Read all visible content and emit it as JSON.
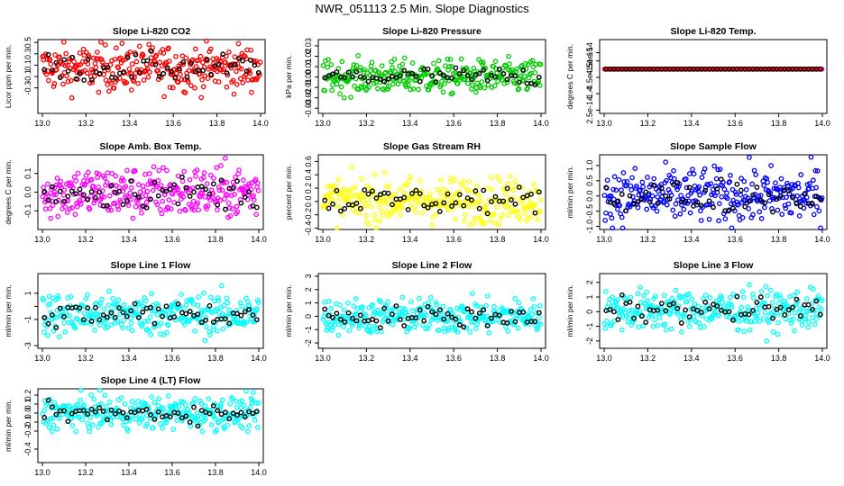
{
  "title": "NWR_051113  2.5 Min. Slope Diagnostics",
  "x_axis": {
    "ticks": [
      "13.0",
      "13.2",
      "13.4",
      "13.6",
      "13.8",
      "14.0"
    ],
    "range": [
      13.0,
      14.0
    ]
  },
  "overlay_color": "#000000",
  "chart_data": [
    {
      "type": "scatter",
      "title": "Slope Li-820 CO2",
      "ylabel": "Licor ppm per min.",
      "color": "#ff0000",
      "yticks": [
        {
          "v": 0.5,
          "t": "0.5"
        },
        {
          "v": 0.3,
          "t": "0.3"
        },
        {
          "v": 0.1,
          "t": "0.1"
        },
        {
          "v": -0.1,
          "t": "-0.1"
        },
        {
          "v": -0.3,
          "t": "-0.3"
        }
      ],
      "ylim": [
        -0.75,
        0.55
      ],
      "center": 0.05,
      "spread": 0.2
    },
    {
      "type": "scatter",
      "title": "Slope Li-820 Pressure",
      "ylabel": "kPa per min.",
      "color": "#00cc00",
      "yticks": [
        {
          "v": 0.03,
          "t": "0.03"
        },
        {
          "v": 0.02,
          "t": "0.02"
        },
        {
          "v": 0.01,
          "t": "0.01"
        },
        {
          "v": 0.0,
          "t": "0.00"
        },
        {
          "v": -0.01,
          "t": "-0.01"
        },
        {
          "v": -0.02,
          "t": "-0.02"
        },
        {
          "v": -0.03,
          "t": "-0.03"
        }
      ],
      "ylim": [
        -0.035,
        0.036
      ],
      "center": 0.0,
      "spread": 0.008
    },
    {
      "type": "scatter",
      "title": "Slope Li-820 Temp.",
      "ylabel": "degrees C per min.",
      "color": "#ff00ff",
      "edge": "#ff0000",
      "yticks": [
        {
          "v": 1.0,
          "t": "1e-14"
        },
        {
          "v": 0.5,
          "t": "4.5e-15"
        },
        {
          "v": -0.5,
          "t": "-4.5e-15"
        },
        {
          "v": -1.5,
          "t": "-1.4"
        },
        {
          "v": -2.5,
          "t": "2.5e-14"
        }
      ],
      "ylim": [
        -2.7,
        1.8
      ],
      "center": 0.0,
      "spread": 0.0
    },
    {
      "type": "scatter",
      "title": "Slope Amb. Box Temp.",
      "ylabel": "degrees C per min.",
      "color": "#ff00ff",
      "yticks": [
        {
          "v": 0.1,
          "t": "0.1"
        },
        {
          "v": 0.0,
          "t": "0.0"
        },
        {
          "v": -0.1,
          "t": "-0.1"
        }
      ],
      "ylim": [
        -0.2,
        0.2
      ],
      "center": 0.0,
      "spread": 0.07
    },
    {
      "type": "scatter",
      "title": "Slope Gas Stream RH",
      "ylabel": "percent per min.",
      "color": "#ffff00",
      "yticks": [
        {
          "v": 0.6,
          "t": "0.6"
        },
        {
          "v": 0.4,
          "t": "0.4"
        },
        {
          "v": 0.2,
          "t": "0.2"
        },
        {
          "v": 0.0,
          "t": "0.0"
        },
        {
          "v": -0.2,
          "t": "-0.2"
        },
        {
          "v": -0.4,
          "t": "-0.4"
        }
      ],
      "ylim": [
        -0.42,
        0.7
      ],
      "center": 0.02,
      "spread": 0.17
    },
    {
      "type": "scatter",
      "title": "Slope Sample Flow",
      "ylabel": "ml/min per min.",
      "color": "#0000ff",
      "yticks": [
        {
          "v": 1.0,
          "t": "1.0"
        },
        {
          "v": 0.5,
          "t": "0.5"
        },
        {
          "v": 0.0,
          "t": "0.0"
        },
        {
          "v": -0.5,
          "t": "-0.5"
        },
        {
          "v": -1.0,
          "t": "-1.0"
        }
      ],
      "ylim": [
        -1.1,
        1.35
      ],
      "center": 0.0,
      "spread": 0.45
    },
    {
      "type": "scatter",
      "title": "Slope Line 1 Flow",
      "ylabel": "ml/min per min.",
      "color": "#00ffff",
      "yticks": [
        {
          "v": 1,
          "t": "1"
        },
        {
          "v": 0,
          "t": ""
        },
        {
          "v": -1,
          "t": "-1"
        },
        {
          "v": -3,
          "t": "-3"
        }
      ],
      "ylim": [
        -3.2,
        2.5
      ],
      "center": -0.6,
      "spread": 0.8
    },
    {
      "type": "scatter",
      "title": "Slope Line 2 Flow",
      "ylabel": "ml/min per min.",
      "color": "#00ffff",
      "yticks": [
        {
          "v": 3,
          "t": "3"
        },
        {
          "v": 2,
          "t": "2"
        },
        {
          "v": 1,
          "t": "1"
        },
        {
          "v": 0,
          "t": "0"
        },
        {
          "v": -1,
          "t": "-1"
        },
        {
          "v": -2,
          "t": "-2"
        }
      ],
      "ylim": [
        -2.4,
        3.2
      ],
      "center": 0.0,
      "spread": 0.65
    },
    {
      "type": "scatter",
      "title": "Slope Line 3 Flow",
      "ylabel": "ml/min per min.",
      "color": "#00ffff",
      "yticks": [
        {
          "v": 2,
          "t": "2"
        },
        {
          "v": 1,
          "t": "1"
        },
        {
          "v": 0,
          "t": "0"
        },
        {
          "v": -1,
          "t": "-1"
        },
        {
          "v": -2,
          "t": "-2"
        }
      ],
      "ylim": [
        -2.5,
        2.6
      ],
      "center": 0.1,
      "spread": 0.7
    },
    {
      "type": "scatter",
      "title": "Slope Line 4 (LT) Flow",
      "ylabel": "ml/min per min.",
      "color": "#00ffff",
      "yticks": [
        {
          "v": 0.2,
          "t": "0.2"
        },
        {
          "v": 0.1,
          "t": "0.1"
        },
        {
          "v": 0.0,
          "t": "0.0"
        },
        {
          "v": -0.1,
          "t": "-0.1"
        },
        {
          "v": -0.2,
          "t": "-0.2"
        },
        {
          "v": -0.4,
          "t": "-0.4"
        }
      ],
      "ylim": [
        -0.55,
        0.27
      ],
      "center": 0.0,
      "spread": 0.09
    }
  ]
}
